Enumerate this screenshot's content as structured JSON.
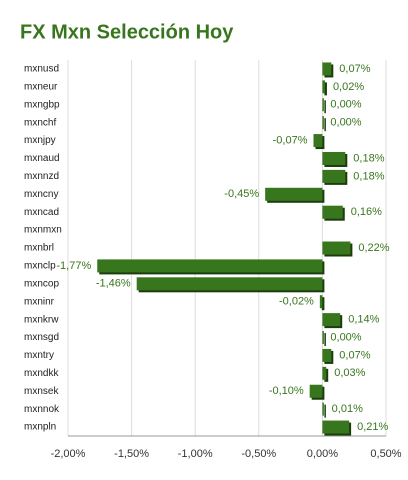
{
  "chart_data": {
    "type": "hbar",
    "title": "FX Mxn Selección Hoy",
    "categories": [
      "mxnusd",
      "mxneur",
      "mxngbp",
      "mxnchf",
      "mxnjpy",
      "mxnaud",
      "mxnnzd",
      "mxncny",
      "mxncad",
      "mxnmxn",
      "mxnbrl",
      "mxnclp",
      "mxncop",
      "mxninr",
      "mxnkrw",
      "mxnsgd",
      "mxntry",
      "mxndkk",
      "mxnsek",
      "mxnnok",
      "mxnpln"
    ],
    "values": [
      0.07,
      0.02,
      0.0,
      0.0,
      -0.07,
      0.18,
      0.18,
      -0.45,
      0.16,
      null,
      0.22,
      -1.77,
      -1.46,
      -0.02,
      0.14,
      0.0,
      0.07,
      0.03,
      -0.1,
      0.01,
      0.21
    ],
    "value_labels": [
      "0,07%",
      "0,02%",
      "0,00%",
      "0,00%",
      "-0,07%",
      "0,18%",
      "0,18%",
      "-0,45%",
      "0,16%",
      null,
      "0,22%",
      "-1,77%",
      "-1,46%",
      "-0,02%",
      "0,14%",
      "0,00%",
      "0,07%",
      "0,03%",
      "-0,10%",
      "0,01%",
      "0,21%"
    ],
    "color": "#38761d",
    "xlim": [
      -2.0,
      0.5
    ],
    "xticks": [
      {
        "value": -2.0,
        "label": "-2,00%"
      },
      {
        "value": -1.5,
        "label": "-1,50%"
      },
      {
        "value": -1.0,
        "label": "-1,00%"
      },
      {
        "value": -0.5,
        "label": "-0,50%"
      },
      {
        "value": 0.0,
        "label": "0,00%"
      },
      {
        "value": 0.5,
        "label": "0,50%"
      }
    ],
    "grid": true
  }
}
